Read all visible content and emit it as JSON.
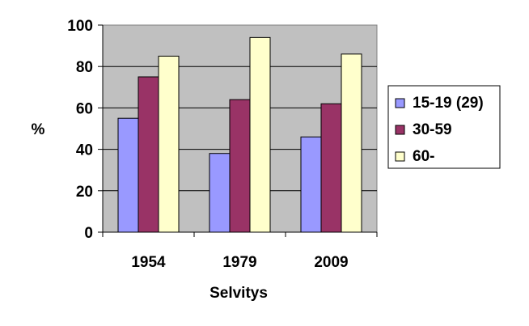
{
  "chart_data": {
    "type": "bar",
    "categories": [
      "1954",
      "1979",
      "2009"
    ],
    "series": [
      {
        "name": "15-19 (29)",
        "values": [
          55,
          38,
          46
        ],
        "color": "#9999ff"
      },
      {
        "name": "30-59",
        "values": [
          75,
          64,
          62
        ],
        "color": "#993366"
      },
      {
        "name": "60-",
        "values": [
          85,
          94,
          86
        ],
        "color": "#ffffcc"
      }
    ],
    "title": "",
    "xlabel": "Selvitys",
    "ylabel": "%",
    "ylim": [
      0,
      100
    ],
    "yticks": [
      0,
      20,
      40,
      60,
      80,
      100
    ],
    "grid": true,
    "plot_background": "#c0c0c0",
    "legend_position": "right"
  }
}
